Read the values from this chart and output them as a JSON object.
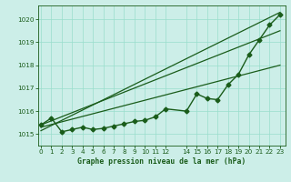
{
  "title": "Graphe pression niveau de la mer (hPa)",
  "bg_color": "#cceee8",
  "grid_color": "#99ddcc",
  "line_color": "#1a5c1a",
  "x_values": [
    0,
    1,
    2,
    3,
    4,
    5,
    6,
    7,
    8,
    9,
    10,
    11,
    12,
    14,
    15,
    16,
    17,
    18,
    19,
    20,
    21,
    22,
    23
  ],
  "pressure_data": [
    1015.4,
    1015.7,
    1015.1,
    1015.2,
    1015.3,
    1015.2,
    1015.25,
    1015.35,
    1015.45,
    1015.55,
    1015.6,
    1015.75,
    1016.1,
    1016.0,
    1016.75,
    1016.55,
    1016.5,
    1017.15,
    1017.6,
    1018.45,
    1019.1,
    1019.75,
    1020.2
  ],
  "ylim_min": 1014.5,
  "ylim_max": 1020.6,
  "xlim_min": -0.3,
  "xlim_max": 23.5,
  "yticks": [
    1015,
    1016,
    1017,
    1018,
    1019,
    1020
  ],
  "xticks": [
    0,
    1,
    2,
    3,
    4,
    5,
    6,
    7,
    8,
    9,
    10,
    11,
    12,
    14,
    15,
    16,
    17,
    18,
    19,
    20,
    21,
    22,
    23
  ],
  "trend1_x": [
    0,
    23
  ],
  "trend1_y": [
    1015.3,
    1018.0
  ],
  "trend2_x": [
    0,
    23
  ],
  "trend2_y": [
    1015.15,
    1020.3
  ],
  "trend3_x": [
    0,
    23
  ],
  "trend3_y": [
    1015.4,
    1019.5
  ]
}
